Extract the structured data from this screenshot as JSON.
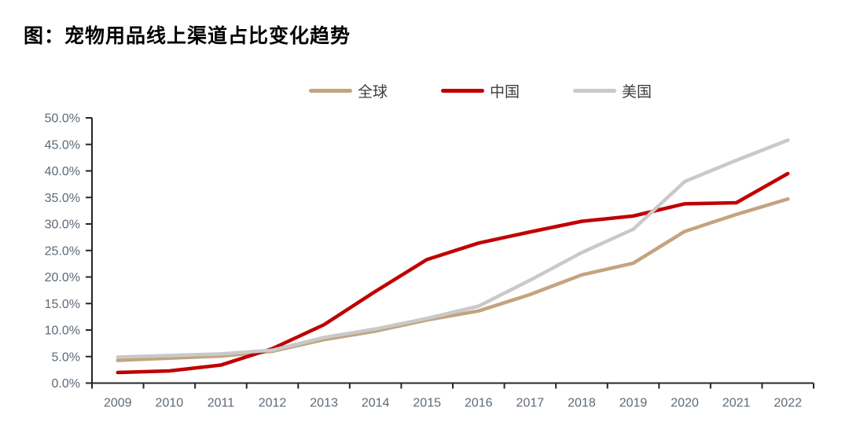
{
  "title": "图：宠物用品线上渠道占比变化趋势",
  "legend": {
    "position": "top-center"
  },
  "axis_colors": {
    "axis_line": "#262626",
    "tick_label": "#5d6a77"
  },
  "chart_data": {
    "type": "line",
    "title": "图：宠物用品线上渠道占比变化趋势",
    "categories": [
      "2009",
      "2010",
      "2011",
      "2012",
      "2013",
      "2014",
      "2015",
      "2016",
      "2017",
      "2018",
      "2019",
      "2020",
      "2021",
      "2022"
    ],
    "series": [
      {
        "name": "全球",
        "color": "#C3A47E",
        "values": [
          4.3,
          4.7,
          5.1,
          6.0,
          8.2,
          9.8,
          11.9,
          13.6,
          16.7,
          20.4,
          22.6,
          28.6,
          31.8,
          34.7
        ]
      },
      {
        "name": "中国",
        "color": "#C00000",
        "values": [
          2.0,
          2.3,
          3.4,
          6.5,
          11.0,
          17.3,
          23.3,
          26.4,
          28.5,
          30.5,
          31.5,
          33.8,
          34.0,
          39.5
        ]
      },
      {
        "name": "美国",
        "color": "#C9C9C9",
        "values": [
          4.9,
          5.2,
          5.5,
          6.2,
          8.6,
          10.2,
          12.2,
          14.5,
          19.4,
          24.6,
          29.0,
          38.0,
          42.0,
          45.8
        ]
      }
    ],
    "xlabel": "",
    "ylabel": "",
    "ylim": [
      0,
      50
    ],
    "y_tick_values": [
      0,
      5,
      10,
      15,
      20,
      25,
      30,
      35,
      40,
      45,
      50
    ],
    "y_ticks": [
      "0.0%",
      "5.0%",
      "10.0%",
      "15.0%",
      "20.0%",
      "25.0%",
      "30.0%",
      "35.0%",
      "40.0%",
      "45.0%",
      "50.0%"
    ],
    "grid": "off",
    "legend_position": "top-center"
  }
}
